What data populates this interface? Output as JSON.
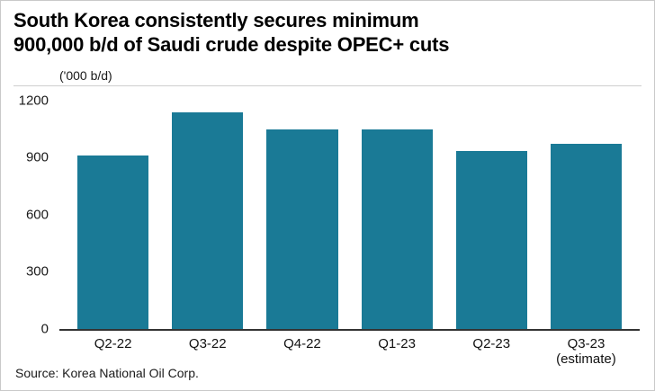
{
  "title": {
    "line1": "South Korea consistently secures minimum",
    "line2": "900,000 b/d of Saudi crude despite OPEC+ cuts"
  },
  "unit_label": "('000 b/d)",
  "source": "Source: Korea National Oil Corp.",
  "colors": {
    "bar": "#1a7a96",
    "axis": "#333333",
    "rule": "#cfcfcf"
  },
  "chart_data": {
    "type": "bar",
    "title": "South Korea consistently secures minimum 900,000 b/d of Saudi crude despite OPEC+ cuts",
    "categories": [
      "Q2-22",
      "Q3-22",
      "Q4-22",
      "Q1-23",
      "Q2-23",
      "Q3-23"
    ],
    "sublabels": [
      "",
      "",
      "",
      "",
      "",
      "(estimate)"
    ],
    "values": [
      910,
      1135,
      1045,
      1045,
      935,
      970
    ],
    "xlabel": "",
    "ylabel": "('000 b/d)",
    "ylim": [
      0,
      1200
    ],
    "yticks": [
      0,
      300,
      600,
      900,
      1200
    ],
    "grid": "none",
    "legend": "none"
  }
}
